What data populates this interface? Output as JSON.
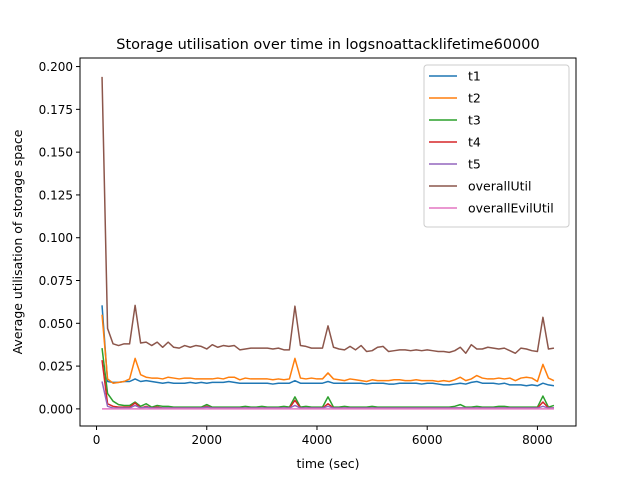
{
  "chart_data": {
    "type": "line",
    "title": "Storage utilisation over time in logsnoattacklifetime60000",
    "xlabel": "time (sec)",
    "ylabel": "Average utilisation of storage space",
    "xlim": [
      -300,
      8700
    ],
    "ylim": [
      -0.01,
      0.205
    ],
    "xticks": [
      0,
      2000,
      4000,
      6000,
      8000
    ],
    "xtick_labels": [
      "0",
      "2000",
      "4000",
      "6000",
      "8000"
    ],
    "yticks": [
      0.0,
      0.025,
      0.05,
      0.075,
      0.1,
      0.125,
      0.15,
      0.175,
      0.2
    ],
    "ytick_labels": [
      "0.000",
      "0.025",
      "0.050",
      "0.075",
      "0.100",
      "0.125",
      "0.150",
      "0.175",
      "0.200"
    ],
    "grid": false,
    "legend_position": "top-right",
    "x": [
      100,
      200,
      300,
      400,
      500,
      600,
      700,
      800,
      900,
      1000,
      1100,
      1200,
      1300,
      1400,
      1500,
      1600,
      1700,
      1800,
      1900,
      2000,
      2100,
      2200,
      2300,
      2400,
      2500,
      2600,
      2700,
      2800,
      2900,
      3000,
      3100,
      3200,
      3300,
      3400,
      3500,
      3600,
      3700,
      3800,
      3900,
      4000,
      4100,
      4200,
      4300,
      4400,
      4500,
      4600,
      4700,
      4800,
      4900,
      5000,
      5100,
      5200,
      5300,
      5400,
      5500,
      5600,
      5700,
      5800,
      5900,
      6000,
      6100,
      6200,
      6300,
      6400,
      6500,
      6600,
      6700,
      6800,
      6900,
      7000,
      7100,
      7200,
      7300,
      7400,
      7500,
      7600,
      7700,
      7800,
      7900,
      8000,
      8100,
      8200,
      8300
    ],
    "series": [
      {
        "name": "t1",
        "color": "#1f77b4",
        "values": [
          0.0605,
          0.016,
          0.0155,
          0.0155,
          0.016,
          0.016,
          0.0175,
          0.016,
          0.0165,
          0.016,
          0.0155,
          0.015,
          0.0155,
          0.015,
          0.015,
          0.015,
          0.0155,
          0.015,
          0.0155,
          0.015,
          0.0155,
          0.0155,
          0.0155,
          0.016,
          0.0155,
          0.015,
          0.015,
          0.015,
          0.015,
          0.015,
          0.015,
          0.0145,
          0.015,
          0.015,
          0.015,
          0.0165,
          0.015,
          0.015,
          0.015,
          0.015,
          0.015,
          0.016,
          0.015,
          0.015,
          0.015,
          0.015,
          0.015,
          0.015,
          0.0145,
          0.015,
          0.015,
          0.015,
          0.0145,
          0.0145,
          0.015,
          0.015,
          0.015,
          0.015,
          0.0145,
          0.015,
          0.015,
          0.0145,
          0.014,
          0.014,
          0.0145,
          0.015,
          0.0145,
          0.0155,
          0.016,
          0.015,
          0.015,
          0.015,
          0.0145,
          0.015,
          0.014,
          0.014,
          0.014,
          0.0135,
          0.014,
          0.0135,
          0.015,
          0.014,
          0.0135
        ]
      },
      {
        "name": "t2",
        "color": "#ff7f0e",
        "values": [
          0.055,
          0.0175,
          0.015,
          0.0155,
          0.016,
          0.0175,
          0.0295,
          0.02,
          0.0185,
          0.018,
          0.018,
          0.0175,
          0.0185,
          0.018,
          0.0175,
          0.018,
          0.018,
          0.0175,
          0.0175,
          0.0175,
          0.0175,
          0.018,
          0.0175,
          0.0185,
          0.0185,
          0.017,
          0.018,
          0.0175,
          0.0175,
          0.0175,
          0.0175,
          0.017,
          0.0175,
          0.017,
          0.0175,
          0.0295,
          0.018,
          0.0175,
          0.018,
          0.0175,
          0.0175,
          0.021,
          0.0175,
          0.017,
          0.0165,
          0.0175,
          0.017,
          0.0165,
          0.016,
          0.017,
          0.0165,
          0.0165,
          0.0165,
          0.017,
          0.017,
          0.0165,
          0.0165,
          0.017,
          0.0165,
          0.0165,
          0.0165,
          0.016,
          0.0165,
          0.016,
          0.017,
          0.0185,
          0.0165,
          0.0175,
          0.0195,
          0.018,
          0.0175,
          0.0175,
          0.018,
          0.0175,
          0.018,
          0.0165,
          0.018,
          0.0185,
          0.018,
          0.016,
          0.026,
          0.018,
          0.0165
        ]
      },
      {
        "name": "t3",
        "color": "#2ca02c",
        "values": [
          0.0355,
          0.009,
          0.0045,
          0.0025,
          0.002,
          0.002,
          0.004,
          0.0015,
          0.003,
          0.001,
          0.002,
          0.0015,
          0.0015,
          0.001,
          0.001,
          0.001,
          0.001,
          0.001,
          0.001,
          0.0025,
          0.001,
          0.001,
          0.001,
          0.001,
          0.001,
          0.001,
          0.0015,
          0.001,
          0.001,
          0.0015,
          0.001,
          0.001,
          0.001,
          0.0015,
          0.001,
          0.007,
          0.001,
          0.0015,
          0.001,
          0.001,
          0.001,
          0.007,
          0.001,
          0.001,
          0.0015,
          0.001,
          0.001,
          0.001,
          0.001,
          0.0015,
          0.001,
          0.001,
          0.001,
          0.001,
          0.001,
          0.001,
          0.001,
          0.001,
          0.001,
          0.001,
          0.001,
          0.001,
          0.001,
          0.001,
          0.0015,
          0.0025,
          0.001,
          0.001,
          0.0015,
          0.001,
          0.001,
          0.001,
          0.0015,
          0.0015,
          0.001,
          0.001,
          0.001,
          0.001,
          0.001,
          0.001,
          0.0075,
          0.001,
          0.002
        ]
      },
      {
        "name": "t4",
        "color": "#d62728",
        "values": [
          0.0285,
          0.003,
          0.0015,
          0.001,
          0.001,
          0.001,
          0.0035,
          0.0005,
          0.0015,
          0.0005,
          0.001,
          0.0005,
          0.0005,
          0.0005,
          0.0005,
          0.0005,
          0.0005,
          0.0005,
          0.0005,
          0.0015,
          0.0005,
          0.0005,
          0.0005,
          0.0005,
          0.0005,
          0.0005,
          0.0005,
          0.0005,
          0.0005,
          0.0005,
          0.0005,
          0.0005,
          0.0005,
          0.0005,
          0.0005,
          0.005,
          0.0005,
          0.0005,
          0.0005,
          0.0005,
          0.0005,
          0.003,
          0.0005,
          0.0005,
          0.0005,
          0.0005,
          0.0005,
          0.0005,
          0.0005,
          0.0005,
          0.0005,
          0.0005,
          0.0005,
          0.0005,
          0.0005,
          0.0005,
          0.0005,
          0.0005,
          0.0005,
          0.0005,
          0.0005,
          0.0005,
          0.0005,
          0.0005,
          0.0005,
          0.0005,
          0.0005,
          0.0005,
          0.0005,
          0.0005,
          0.0005,
          0.0005,
          0.0005,
          0.0005,
          0.0005,
          0.0005,
          0.0005,
          0.0005,
          0.0005,
          0.0005,
          0.004,
          0.0005,
          0.0005
        ]
      },
      {
        "name": "t5",
        "color": "#9467bd",
        "values": [
          0.016,
          0.0015,
          0.0005,
          0.0005,
          0.0005,
          0.0005,
          0.002,
          0.0005,
          0.001,
          0.0005,
          0.0005,
          0.0005,
          0.0005,
          0.0005,
          0.0005,
          0.0005,
          0.0005,
          0.0005,
          0.0005,
          0.001,
          0.0005,
          0.0005,
          0.0005,
          0.0005,
          0.0005,
          0.0005,
          0.0005,
          0.0005,
          0.0005,
          0.0005,
          0.0005,
          0.0005,
          0.0005,
          0.0005,
          0.0005,
          0.002,
          0.0005,
          0.0005,
          0.0005,
          0.0005,
          0.0005,
          0.0015,
          0.0005,
          0.0005,
          0.0005,
          0.0005,
          0.0005,
          0.0005,
          0.0005,
          0.0005,
          0.0005,
          0.0005,
          0.0005,
          0.0005,
          0.0005,
          0.0005,
          0.0005,
          0.0005,
          0.0005,
          0.0005,
          0.0005,
          0.0005,
          0.0005,
          0.0005,
          0.0005,
          0.0005,
          0.0005,
          0.0005,
          0.0005,
          0.0005,
          0.0005,
          0.0005,
          0.0005,
          0.0005,
          0.0005,
          0.0005,
          0.0005,
          0.0005,
          0.0005,
          0.0005,
          0.0015,
          0.0005,
          0.0005
        ]
      },
      {
        "name": "overallUtil",
        "color": "#8c564b",
        "values": [
          0.194,
          0.047,
          0.038,
          0.037,
          0.038,
          0.038,
          0.0605,
          0.0385,
          0.039,
          0.037,
          0.039,
          0.036,
          0.039,
          0.036,
          0.0355,
          0.037,
          0.036,
          0.037,
          0.0365,
          0.035,
          0.0375,
          0.036,
          0.037,
          0.0365,
          0.037,
          0.0345,
          0.035,
          0.0355,
          0.0355,
          0.0355,
          0.0355,
          0.035,
          0.0355,
          0.0345,
          0.0345,
          0.06,
          0.037,
          0.0365,
          0.0355,
          0.0355,
          0.0355,
          0.0485,
          0.036,
          0.035,
          0.0345,
          0.0365,
          0.0345,
          0.037,
          0.0335,
          0.034,
          0.036,
          0.0365,
          0.0335,
          0.034,
          0.0345,
          0.0345,
          0.034,
          0.0345,
          0.034,
          0.0345,
          0.034,
          0.0335,
          0.0335,
          0.033,
          0.034,
          0.036,
          0.0325,
          0.0375,
          0.035,
          0.035,
          0.036,
          0.0355,
          0.035,
          0.0355,
          0.034,
          0.0325,
          0.0355,
          0.035,
          0.034,
          0.0335,
          0.0535,
          0.035,
          0.0355
        ]
      },
      {
        "name": "overallEvilUtil",
        "color": "#e377c2",
        "values": [
          0.0,
          0.0,
          0.0,
          0.0,
          0.0,
          0.0,
          0.0,
          0.0,
          0.0,
          0.0,
          0.0,
          0.0,
          0.0,
          0.0,
          0.0,
          0.0,
          0.0,
          0.0,
          0.0,
          0.0,
          0.0,
          0.0,
          0.0,
          0.0,
          0.0,
          0.0,
          0.0,
          0.0,
          0.0,
          0.0,
          0.0,
          0.0,
          0.0,
          0.0,
          0.0,
          0.0,
          0.0,
          0.0,
          0.0,
          0.0,
          0.0,
          0.0,
          0.0,
          0.0,
          0.0,
          0.0,
          0.0,
          0.0,
          0.0,
          0.0,
          0.0,
          0.0,
          0.0,
          0.0,
          0.0,
          0.0,
          0.0,
          0.0,
          0.0,
          0.0,
          0.0,
          0.0,
          0.0,
          0.0,
          0.0,
          0.0,
          0.0,
          0.0,
          0.0,
          0.0,
          0.0,
          0.0,
          0.0,
          0.0,
          0.0,
          0.0,
          0.0,
          0.0,
          0.0,
          0.0,
          0.0,
          0.0,
          0.0
        ]
      }
    ]
  }
}
